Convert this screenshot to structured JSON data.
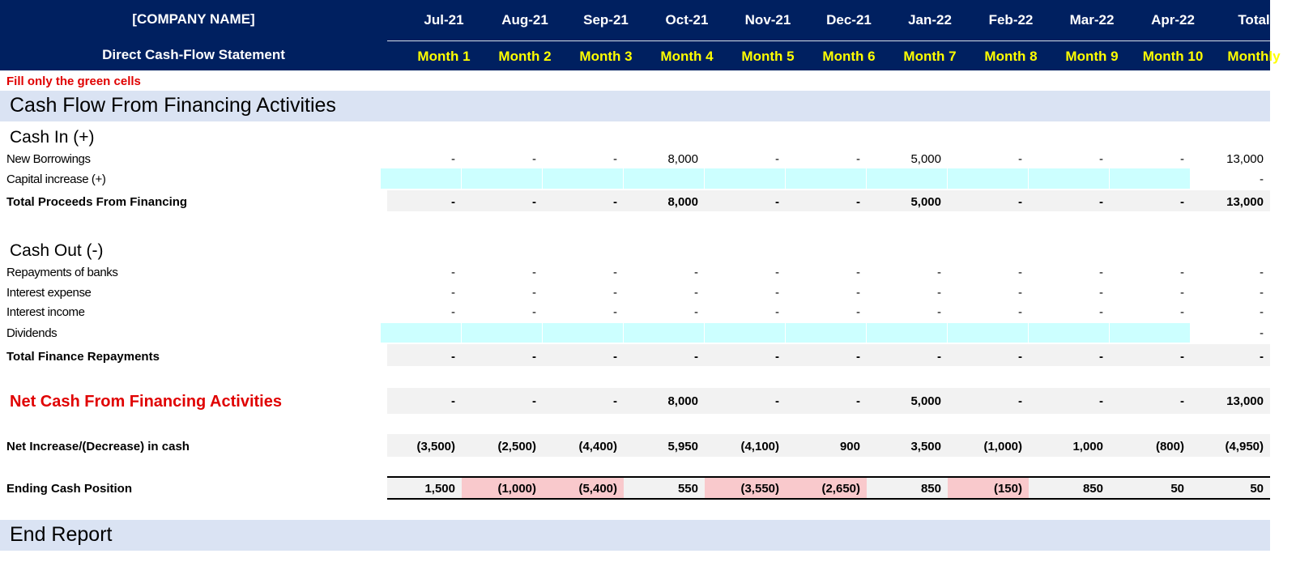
{
  "header": {
    "company": "[COMPANY NAME]",
    "subtitle": "Direct Cash-Flow Statement",
    "periods": [
      {
        "date": "Jul-21",
        "month": "Month 1"
      },
      {
        "date": "Aug-21",
        "month": "Month 2"
      },
      {
        "date": "Sep-21",
        "month": "Month 3"
      },
      {
        "date": "Oct-21",
        "month": "Month 4"
      },
      {
        "date": "Nov-21",
        "month": "Month 5"
      },
      {
        "date": "Dec-21",
        "month": "Month 6"
      },
      {
        "date": "Jan-22",
        "month": "Month 7"
      },
      {
        "date": "Feb-22",
        "month": "Month 8"
      },
      {
        "date": "Mar-22",
        "month": "Month 9"
      },
      {
        "date": "Apr-22",
        "month": "Month 10"
      }
    ],
    "total_label": "Total",
    "total_sub": "Monthly"
  },
  "note": "Fill only the green cells",
  "section_title": "Cash Flow From Financing Activities",
  "cash_in": {
    "title": "Cash In (+)",
    "rows": [
      {
        "label": "New Borrowings",
        "values": [
          "-",
          "-",
          "-",
          "8,000",
          "-",
          "-",
          "5,000",
          "-",
          "-",
          "-"
        ],
        "total": "13,000"
      },
      {
        "label": "Capital increase (+)",
        "values": [
          "",
          "",
          "",
          "",
          "",
          "",
          "",
          "",
          "",
          ""
        ],
        "total": "-"
      }
    ],
    "total_row": {
      "label": "Total Proceeds From Financing",
      "values": [
        "-",
        "-",
        "-",
        "8,000",
        "-",
        "-",
        "5,000",
        "-",
        "-",
        "-"
      ],
      "total": "13,000"
    }
  },
  "cash_out": {
    "title": "Cash Out (-)",
    "rows": [
      {
        "label": "Repayments of banks",
        "values": [
          "-",
          "-",
          "-",
          "-",
          "-",
          "-",
          "-",
          "-",
          "-",
          "-"
        ],
        "total": "-"
      },
      {
        "label": "Interest expense",
        "values": [
          "-",
          "-",
          "-",
          "-",
          "-",
          "-",
          "-",
          "-",
          "-",
          "-"
        ],
        "total": "-"
      },
      {
        "label": "Interest income",
        "values": [
          "-",
          "-",
          "-",
          "-",
          "-",
          "-",
          "-",
          "-",
          "-",
          "-"
        ],
        "total": "-"
      },
      {
        "label": "Dividends",
        "values": [
          "",
          "",
          "",
          "",
          "",
          "",
          "",
          "",
          "",
          ""
        ],
        "total": "-"
      }
    ],
    "total_row": {
      "label": "Total Finance Repayments",
      "values": [
        "-",
        "-",
        "-",
        "-",
        "-",
        "-",
        "-",
        "-",
        "-",
        "-"
      ],
      "total": "-"
    }
  },
  "net_financing": {
    "label": "Net Cash From Financing Activities",
    "values": [
      "-",
      "-",
      "-",
      "8,000",
      "-",
      "-",
      "5,000",
      "-",
      "-",
      "-"
    ],
    "total": "13,000"
  },
  "net_increase": {
    "label": "Net Increase/(Decrease) in cash",
    "values": [
      "(3,500)",
      "(2,500)",
      "(4,400)",
      "5,950",
      "(4,100)",
      "900",
      "3,500",
      "(1,000)",
      "1,000",
      "(800)"
    ],
    "total": "(4,950)"
  },
  "ending_cash": {
    "label": "Ending Cash Position",
    "values": [
      "1,500",
      "(1,000)",
      "(5,400)",
      "550",
      "(3,550)",
      "(2,650)",
      "850",
      "(150)",
      "850",
      "50"
    ],
    "total": "50"
  },
  "end_title": "End Report",
  "colors": {
    "header_bg": "#002060",
    "header_month": "#ffff00",
    "section_band": "#dae3f3",
    "input_green": "#ccffff",
    "negative_highlight": "#f9c9cc",
    "total_row_bg": "#f2f2f2",
    "accent_red": "#e00000"
  }
}
